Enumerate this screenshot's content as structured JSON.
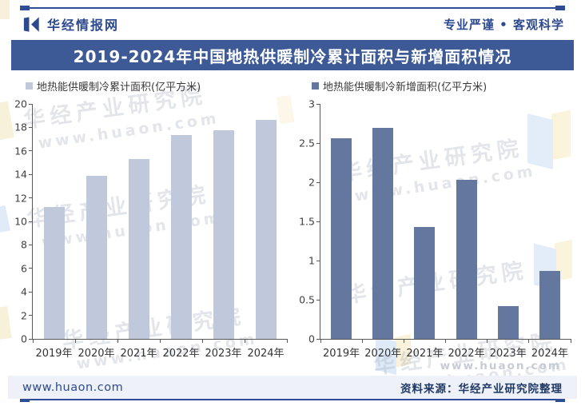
{
  "header": {
    "brand": "华经情报网",
    "slogan": "专业严谨 • 客观科学"
  },
  "title": "2019-2024年中国地热供暖制冷累计面积与新增面积情况",
  "watermark": {
    "org": "华经产业研究院",
    "url": "www.huaon.com"
  },
  "footer": {
    "site": "www.huaon.com",
    "source": "资料来源：华经产业研究院整理"
  },
  "colors": {
    "accent_navy": "#2F4C97",
    "title_bar": "#3D5A97",
    "bar_cumulative": "#C0C9DB",
    "bar_new": "#64779E",
    "footer_bg": "#EEF2F8",
    "axis": "#595959"
  },
  "chart_data": [
    {
      "type": "bar",
      "legend": "地热能供暖制冷累计面积(亿平方米)",
      "legend_position": "top",
      "categories": [
        "2019年",
        "2020年",
        "2021年",
        "2022年",
        "2023年",
        "2024年"
      ],
      "values": [
        11.2,
        13.89,
        15.32,
        17.35,
        17.77,
        18.64
      ],
      "ylim": [
        0,
        20
      ],
      "yticks": [
        0,
        2,
        4,
        6,
        8,
        10,
        12,
        14,
        16,
        18,
        20
      ],
      "xlabel": "",
      "ylabel": "",
      "grid": false,
      "color": "#C0C9DB"
    },
    {
      "type": "bar",
      "legend": "地热能供暖制冷新增面积(亿平方米)",
      "legend_position": "top",
      "categories": [
        "2019年",
        "2020年",
        "2021年",
        "2022年",
        "2023年",
        "2024年"
      ],
      "values": [
        2.56,
        2.69,
        1.43,
        2.03,
        0.42,
        0.87
      ],
      "ylim": [
        0,
        3
      ],
      "yticks": [
        0,
        0.5,
        1,
        1.5,
        2,
        2.5,
        3
      ],
      "xlabel": "",
      "ylabel": "",
      "grid": false,
      "color": "#64779E"
    }
  ]
}
